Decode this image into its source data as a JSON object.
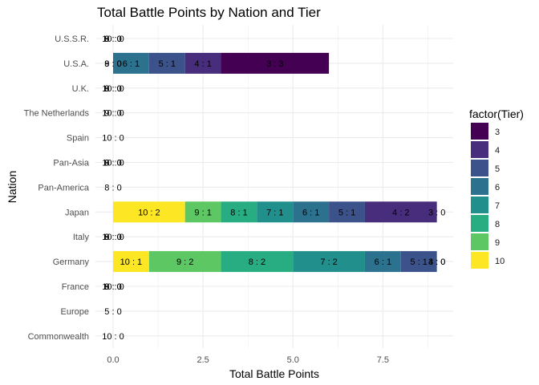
{
  "chart_data": {
    "type": "bar",
    "orientation": "horizontal",
    "stacked": true,
    "title": "Total Battle Points by Nation and Tier",
    "xlabel": "Total Battle Points",
    "ylabel": "Nation",
    "xlim": [
      0,
      9.3
    ],
    "x_ticks": [
      "0.0",
      "2.5",
      "5.0",
      "7.5"
    ],
    "x_tick_values": [
      0,
      2.5,
      5,
      7.5
    ],
    "grid": true,
    "legend": {
      "title": "factor(Tier)",
      "placement": "right",
      "items": [
        {
          "label": "3",
          "color": "#440154"
        },
        {
          "label": "4",
          "color": "#472D7B"
        },
        {
          "label": "5",
          "color": "#3B528B"
        },
        {
          "label": "6",
          "color": "#2C728E"
        },
        {
          "label": "7",
          "color": "#21908C"
        },
        {
          "label": "8",
          "color": "#27AD81"
        },
        {
          "label": "9",
          "color": "#5DC863"
        },
        {
          "label": "10",
          "color": "#FDE725"
        }
      ]
    },
    "categories": [
      "U.S.S.R.",
      "U.S.A.",
      "U.K.",
      "The Netherlands",
      "Spain",
      "Pan-Asia",
      "Pan-America",
      "Japan",
      "Italy",
      "Germany",
      "France",
      "Europe",
      "Commonwealth"
    ],
    "stack_order": [
      "10",
      "9",
      "8",
      "7",
      "6",
      "5",
      "4",
      "3"
    ],
    "values": {
      "U.S.S.R.": {
        "10": 0,
        "9": 0,
        "8": 0
      },
      "U.S.A.": {
        "9": 0,
        "8": 0,
        "6": 1,
        "5": 1,
        "4": 1,
        "3": 3
      },
      "U.K.": {
        "10": 0,
        "9": 0,
        "8": 0
      },
      "The Netherlands": {
        "10": 0,
        "9": 0
      },
      "Spain": {
        "10": 0
      },
      "Pan-Asia": {
        "10": 0,
        "9": 0,
        "8": 0
      },
      "Pan-America": {
        "8": 0
      },
      "Japan": {
        "10": 2,
        "9": 1,
        "8": 1,
        "7": 1,
        "6": 1,
        "5": 1,
        "4": 2,
        "3": 0
      },
      "Italy": {
        "10": 0,
        "9": 0,
        "8": 0
      },
      "Germany": {
        "10": 1,
        "9": 2,
        "8": 2,
        "7": 2,
        "6": 1,
        "5": 1,
        "4": 0,
        "3": 0
      },
      "France": {
        "10": 0,
        "9": 0,
        "8": 0
      },
      "Europe": {
        "5": 0
      },
      "Commonwealth": {
        "10": 0
      }
    },
    "label_separator": " :  "
  }
}
